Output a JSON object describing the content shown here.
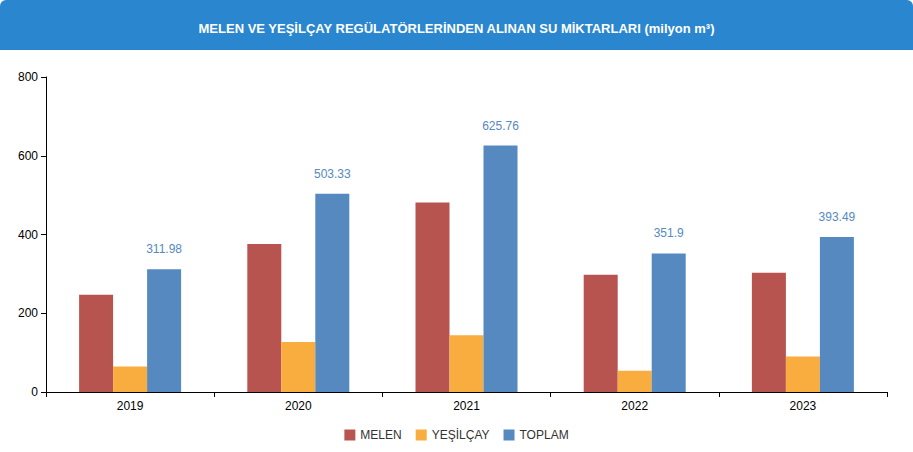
{
  "chart_data": {
    "type": "bar",
    "title": "MELEN VE YEŞİLÇAY REGÜLATÖRLERİNDEN ALINAN SU MİKTARLARI (milyon m³)",
    "categories": [
      "2019",
      "2020",
      "2021",
      "2022",
      "2023"
    ],
    "series": [
      {
        "name": "MELEN",
        "color": "#b85450",
        "values": [
          247,
          376,
          481,
          298,
          303
        ]
      },
      {
        "name": "YEŞİLÇAY",
        "color": "#f9ad3f",
        "values": [
          65,
          127,
          144,
          54,
          90
        ]
      },
      {
        "name": "TOPLAM",
        "color": "#5589c0",
        "values": [
          311.98,
          503.33,
          625.76,
          351.9,
          393.49
        ],
        "data_labels": true
      }
    ],
    "ylim": [
      0,
      800
    ],
    "yticks": [
      0,
      200,
      400,
      600,
      800
    ],
    "grid": false,
    "legend": "bottom"
  }
}
